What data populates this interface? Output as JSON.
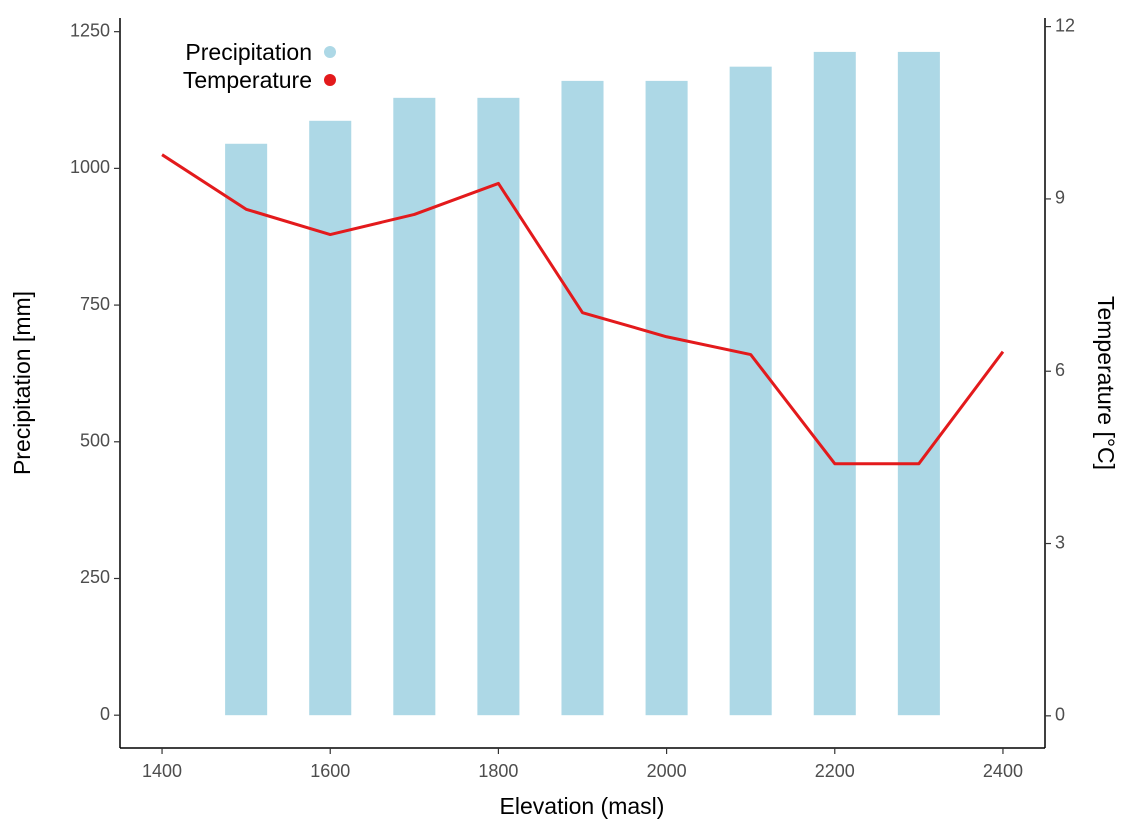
{
  "chart_data": {
    "type": "combo",
    "xlabel": "Elevation (masl)",
    "ylabel": "Precipitation [mm]",
    "y2label": "Temperature [°C]",
    "xlim": [
      1350,
      2450
    ],
    "xticks": [
      1400,
      1600,
      1800,
      2000,
      2200,
      2400
    ],
    "ylim": [
      -60,
      1275
    ],
    "yticks": [
      0,
      250,
      500,
      750,
      1000,
      1250
    ],
    "y2lim": [
      -0.56,
      12.15
    ],
    "y2ticks": [
      0,
      3,
      6,
      9,
      12
    ],
    "legend": "top-left",
    "series": [
      {
        "name": "Precipitation",
        "type": "bar",
        "color": "#add8e6",
        "bar_width": 50,
        "x": [
          1500,
          1600,
          1700,
          1800,
          1900,
          2000,
          2100,
          2200,
          2300
        ],
        "values": [
          1045,
          1087,
          1129,
          1129,
          1160,
          1160,
          1186,
          1213,
          1213
        ]
      },
      {
        "name": "Temperature",
        "type": "line",
        "color": "#e31a1c",
        "axis": "y2",
        "x": [
          1400,
          1500,
          1600,
          1700,
          1800,
          1900,
          2000,
          2100,
          2200,
          2300,
          2400
        ],
        "values": [
          9.77,
          8.82,
          8.38,
          8.73,
          9.27,
          7.02,
          6.6,
          6.29,
          4.39,
          4.39,
          6.34
        ]
      }
    ]
  }
}
